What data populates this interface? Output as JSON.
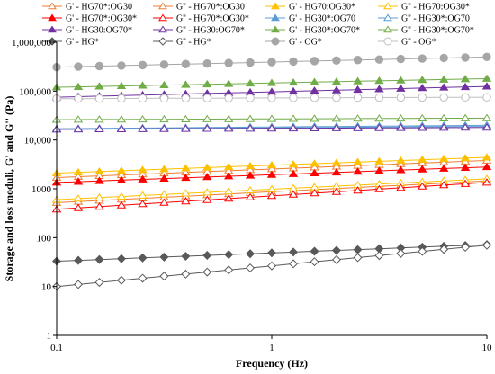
{
  "chart_data": {
    "type": "line",
    "xlabel": "Frequency (Hz)",
    "ylabel": "Storage and loss moduli, G' and G'' (Pa)",
    "x_scale": "log",
    "y_scale": "log",
    "xlim": [
      0.1,
      10
    ],
    "ylim": [
      1,
      1000000
    ],
    "x_ticks": [
      0.1,
      1,
      10
    ],
    "x_tick_labels": [
      "0.1",
      "1",
      "10"
    ],
    "y_ticks": [
      1,
      10,
      100,
      1000,
      10000,
      100000,
      1000000
    ],
    "y_tick_labels": [
      "1",
      "10",
      "100",
      "1000",
      "10,000",
      "100,000",
      "1,000,000"
    ],
    "grid": false,
    "legend_position": "top",
    "x": [
      0.1,
      0.126,
      0.158,
      0.2,
      0.251,
      0.316,
      0.398,
      0.501,
      0.631,
      0.794,
      1,
      1.26,
      1.58,
      2,
      2.51,
      3.16,
      3.98,
      5.01,
      6.31,
      7.94,
      10
    ],
    "series": [
      {
        "name": "G' - HG70*:OG30",
        "color": "#ED7D31",
        "marker": "triangle",
        "filled": false,
        "y_start": 1700,
        "y_end": 3800
      },
      {
        "name": "G'' - HG70*:OG30",
        "color": "#ED7D31",
        "marker": "triangle",
        "filled": false,
        "y_start": 520,
        "y_end": 1450
      },
      {
        "name": "G' - HG70:OG30*",
        "color": "#FFC000",
        "marker": "triangle",
        "filled": true,
        "y_start": 2100,
        "y_end": 4400
      },
      {
        "name": "G'' - HG70:OG30*",
        "color": "#FFC000",
        "marker": "triangle",
        "filled": false,
        "y_start": 600,
        "y_end": 1600
      },
      {
        "name": "G' - HG70*:OG30*",
        "color": "#FF0000",
        "marker": "triangle",
        "filled": true,
        "y_start": 1350,
        "y_end": 2800
      },
      {
        "name": "G'' - HG70*:OG30*",
        "color": "#FF0000",
        "marker": "triangle",
        "filled": false,
        "y_start": 380,
        "y_end": 1350
      },
      {
        "name": "G' - HG30*:OG70",
        "color": "#5B9BD5",
        "marker": "triangle",
        "filled": true,
        "y_start": 17000,
        "y_end": 20000
      },
      {
        "name": "G'' - HG30*:OG70",
        "color": "#5B9BD5",
        "marker": "triangle",
        "filled": false,
        "y_start": 16500,
        "y_end": 19000
      },
      {
        "name": "G' - HG30:OG70*",
        "color": "#7030A0",
        "marker": "triangle",
        "filled": true,
        "y_start": 75000,
        "y_end": 125000
      },
      {
        "name": "G'' - HG30:OG70*",
        "color": "#7030A0",
        "marker": "triangle",
        "filled": false,
        "y_start": 16500,
        "y_end": 18000
      },
      {
        "name": "G' - HG30*:OG70*",
        "color": "#70AD47",
        "marker": "triangle",
        "filled": true,
        "y_start": 120000,
        "y_end": 180000
      },
      {
        "name": "G'' - HG30*:OG70*",
        "color": "#70AD47",
        "marker": "triangle",
        "filled": false,
        "y_start": 26000,
        "y_end": 28000
      },
      {
        "name": "G' - HG*",
        "color": "#595959",
        "marker": "diamond",
        "filled": true,
        "y_start": 33,
        "y_end": 72
      },
      {
        "name": "G'' - HG*",
        "color": "#595959",
        "marker": "diamond",
        "filled": false,
        "y_start": 10,
        "y_end": 70
      },
      {
        "name": "G' - OG*",
        "color": "#A6A6A6",
        "marker": "circle",
        "filled": true,
        "y_start": 310000,
        "y_end": 500000
      },
      {
        "name": "G'' - OG*",
        "color": "#BFBFBF",
        "marker": "circle",
        "filled": false,
        "y_start": 70000,
        "y_end": 75000
      }
    ]
  }
}
